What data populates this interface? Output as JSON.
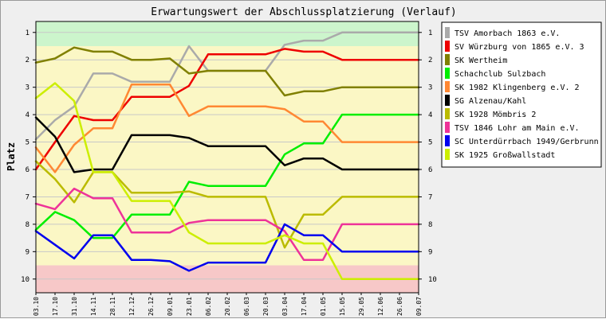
{
  "chart_data": {
    "type": "line",
    "title": "Erwartungswert der Abschlussplatzierung (Verlauf)",
    "xlabel": "",
    "ylabel": "Platz",
    "y_ticks": [
      1,
      2,
      3,
      4,
      5,
      6,
      7,
      8,
      9,
      10
    ],
    "ylim": [
      10.5,
      0.6
    ],
    "y_inverted": true,
    "grid": "horizontal",
    "legend_position": "right",
    "bands": [
      {
        "from": 0.6,
        "to": 1.5,
        "color": "#ccf5cc"
      },
      {
        "from": 1.5,
        "to": 9.5,
        "color": "#fbf7c5"
      },
      {
        "from": 9.5,
        "to": 10.5,
        "color": "#f7c8c8"
      }
    ],
    "x": [
      "03.10",
      "17.10",
      "31.10",
      "14.11",
      "28.11",
      "12.12",
      "26.12",
      "09.01",
      "23.01",
      "06.02",
      "20.02",
      "06.03",
      "20.03",
      "03.04",
      "17.04",
      "01.05",
      "15.05",
      "29.05",
      "12.06",
      "26.06",
      "09.07"
    ],
    "series": [
      {
        "name": "TSV Amorbach 1863 e.V.",
        "color": "#aaaaaa",
        "values": [
          4.9,
          4.2,
          3.7,
          2.5,
          2.5,
          2.8,
          2.8,
          2.8,
          1.5,
          2.4,
          2.4,
          2.4,
          2.4,
          1.45,
          1.3,
          1.3,
          1.0,
          1.0,
          1.0,
          1.0,
          1.0
        ]
      },
      {
        "name": "SV Würzburg von 1865 e.V. 3",
        "color": "#ee0000",
        "values": [
          6.0,
          5.0,
          4.05,
          4.2,
          4.2,
          3.35,
          3.35,
          3.35,
          2.95,
          1.8,
          1.8,
          1.8,
          1.8,
          1.6,
          1.7,
          1.7,
          2.0,
          2.0,
          2.0,
          2.0,
          2.0
        ]
      },
      {
        "name": "SK Wertheim",
        "color": "#808000",
        "values": [
          2.1,
          1.95,
          1.55,
          1.7,
          1.7,
          2.0,
          2.0,
          1.95,
          2.5,
          2.4,
          2.4,
          2.4,
          2.4,
          3.3,
          3.15,
          3.15,
          3.0,
          3.0,
          3.0,
          3.0,
          3.0
        ]
      },
      {
        "name": "Schachclub Sulzbach",
        "color": "#00ee00",
        "values": [
          8.2,
          7.55,
          7.85,
          8.5,
          8.5,
          7.65,
          7.65,
          7.65,
          6.45,
          6.6,
          6.6,
          6.6,
          6.6,
          5.45,
          5.05,
          5.05,
          4.0,
          4.0,
          4.0,
          4.0,
          4.0
        ]
      },
      {
        "name": "SK 1982 Klingenberg e.V. 2",
        "color": "#ff8833",
        "values": [
          5.2,
          6.1,
          5.1,
          4.5,
          4.5,
          2.9,
          2.9,
          2.9,
          4.05,
          3.7,
          3.7,
          3.7,
          3.7,
          3.8,
          4.25,
          4.25,
          5.0,
          5.0,
          5.0,
          5.0,
          5.0
        ]
      },
      {
        "name": "SG Alzenau/Kahl",
        "color": "#000000",
        "values": [
          4.1,
          4.8,
          6.1,
          6.0,
          6.0,
          4.75,
          4.75,
          4.75,
          4.85,
          5.15,
          5.15,
          5.15,
          5.15,
          5.85,
          5.6,
          5.6,
          6.0,
          6.0,
          6.0,
          6.0,
          6.0
        ]
      },
      {
        "name": "SK 1928 Mömbris 2",
        "color": "#bbbb00",
        "values": [
          5.7,
          6.35,
          7.2,
          6.1,
          6.1,
          6.85,
          6.85,
          6.85,
          6.8,
          7.0,
          7.0,
          7.0,
          7.0,
          8.85,
          7.65,
          7.65,
          7.0,
          7.0,
          7.0,
          7.0,
          7.0
        ]
      },
      {
        "name": "TSV 1846 Lohr am Main e.V.",
        "color": "#ee3399",
        "values": [
          7.25,
          7.45,
          6.7,
          7.05,
          7.05,
          8.3,
          8.3,
          8.3,
          7.95,
          7.85,
          7.85,
          7.85,
          7.85,
          8.25,
          9.3,
          9.3,
          8.0,
          8.0,
          8.0,
          8.0,
          8.0
        ]
      },
      {
        "name": "SC Unterdürrbach 1949/Gerbrunn",
        "color": "#0000ee",
        "values": [
          8.25,
          8.75,
          9.25,
          8.4,
          8.4,
          9.3,
          9.3,
          9.35,
          9.7,
          9.4,
          9.4,
          9.4,
          9.4,
          8.0,
          8.4,
          8.4,
          9.0,
          9.0,
          9.0,
          9.0,
          9.0
        ]
      },
      {
        "name": "SK 1925 Großwallstadt",
        "color": "#ccee00",
        "values": [
          3.4,
          2.85,
          3.5,
          6.1,
          6.1,
          7.15,
          7.15,
          7.15,
          8.3,
          8.7,
          8.7,
          8.7,
          8.7,
          8.4,
          8.7,
          8.7,
          10.0,
          10.0,
          10.0,
          10.0,
          10.0
        ]
      }
    ]
  }
}
